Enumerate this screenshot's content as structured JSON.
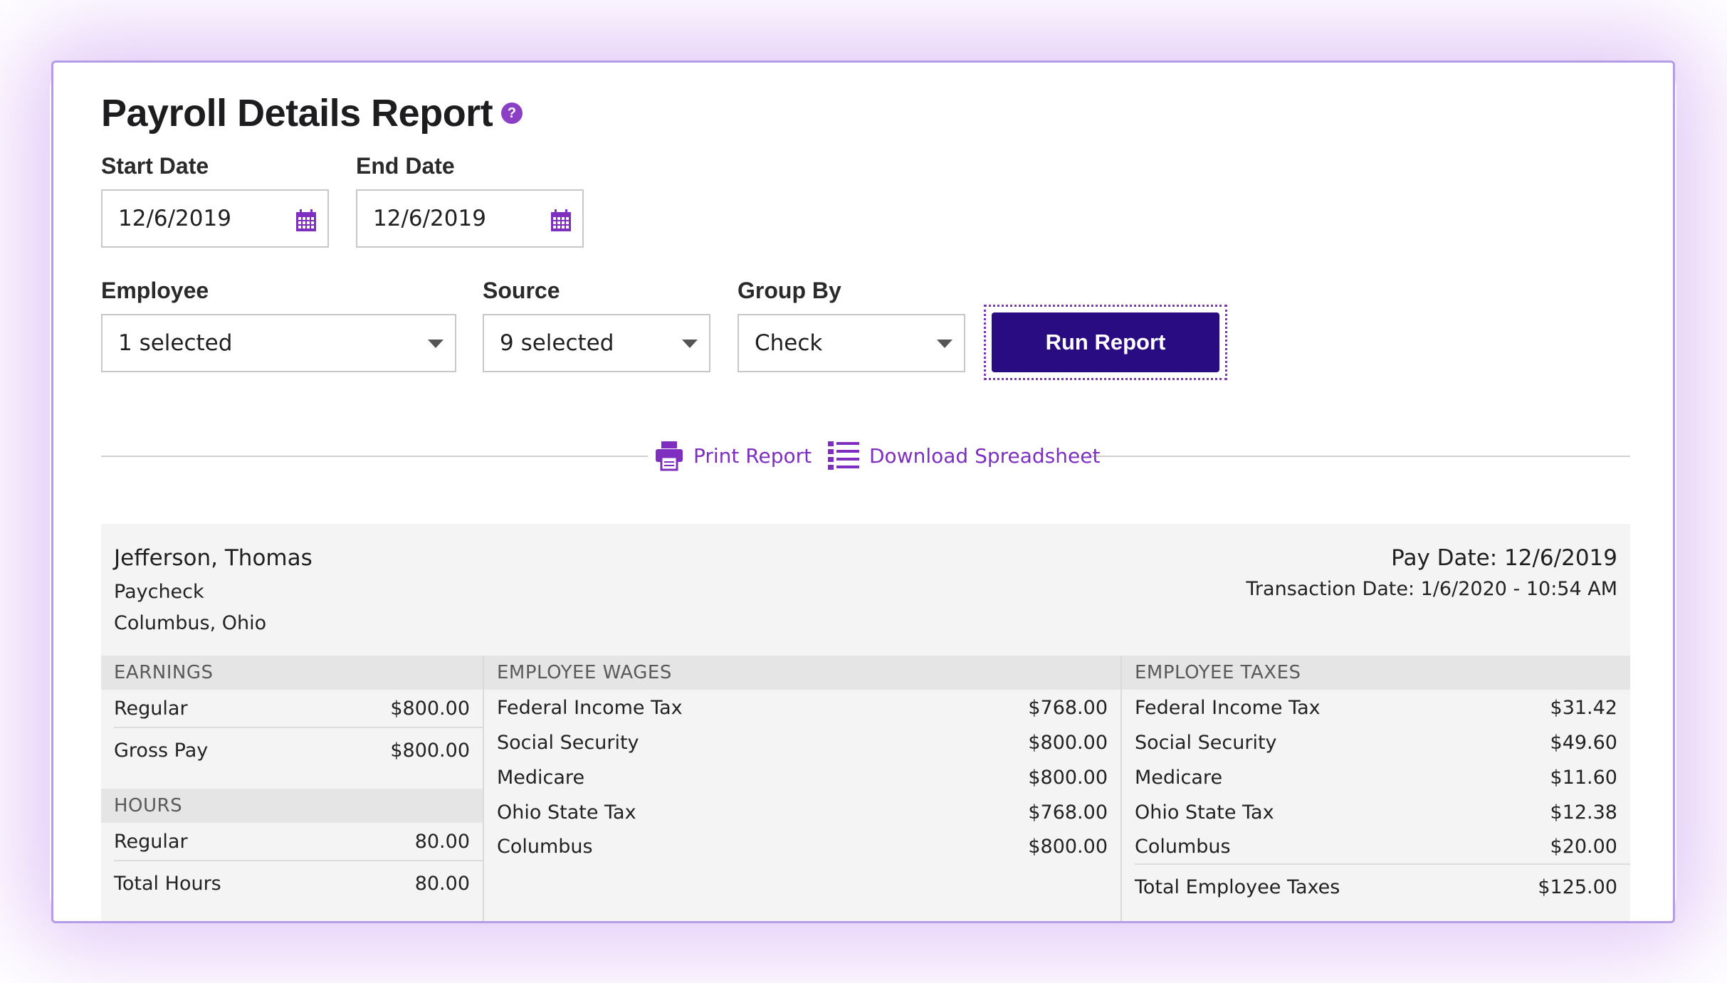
{
  "page": {
    "title": "Payroll Details Report",
    "help_icon": "question-circle-icon"
  },
  "filters": {
    "start_date": {
      "label": "Start Date",
      "value": "12/6/2019"
    },
    "end_date": {
      "label": "End Date",
      "value": "12/6/2019"
    },
    "employee": {
      "label": "Employee",
      "value": "1 selected"
    },
    "source": {
      "label": "Source",
      "value": "9 selected"
    },
    "group_by": {
      "label": "Group By",
      "value": "Check"
    },
    "run_button": "Run Report"
  },
  "actions": {
    "print": "Print Report",
    "download": "Download Spreadsheet"
  },
  "report": {
    "employee_name": "Jefferson, Thomas",
    "pay_type": "Paycheck",
    "location": "Columbus, Ohio",
    "pay_date": "Pay Date: 12/6/2019",
    "transaction_date": "Transaction Date: 1/6/2020 - 10:54 AM",
    "earnings": {
      "header": "EARNINGS",
      "rows": [
        {
          "label": "Regular",
          "value": "$800.00"
        },
        {
          "label": "Gross Pay",
          "value": "$800.00"
        }
      ]
    },
    "hours": {
      "header": "HOURS",
      "rows": [
        {
          "label": "Regular",
          "value": "80.00"
        },
        {
          "label": "Total Hours",
          "value": "80.00"
        }
      ]
    },
    "wages": {
      "header": "EMPLOYEE WAGES",
      "rows": [
        {
          "label": "Federal Income Tax",
          "value": "$768.00"
        },
        {
          "label": "Social Security",
          "value": "$800.00"
        },
        {
          "label": "Medicare",
          "value": "$800.00"
        },
        {
          "label": "Ohio State Tax",
          "value": "$768.00"
        },
        {
          "label": "Columbus",
          "value": "$800.00"
        }
      ]
    },
    "taxes": {
      "header": "EMPLOYEE TAXES",
      "rows": [
        {
          "label": "Federal Income Tax",
          "value": "$31.42"
        },
        {
          "label": "Social Security",
          "value": "$49.60"
        },
        {
          "label": "Medicare",
          "value": "$11.60"
        },
        {
          "label": "Ohio State Tax",
          "value": "$12.38"
        },
        {
          "label": "Columbus",
          "value": "$20.00"
        }
      ],
      "total": {
        "label": "Total Employee Taxes",
        "value": "$125.00"
      }
    }
  },
  "colors": {
    "accent": "#7e2fbf",
    "button": "#2a0c82",
    "border": "#b59ce6"
  }
}
